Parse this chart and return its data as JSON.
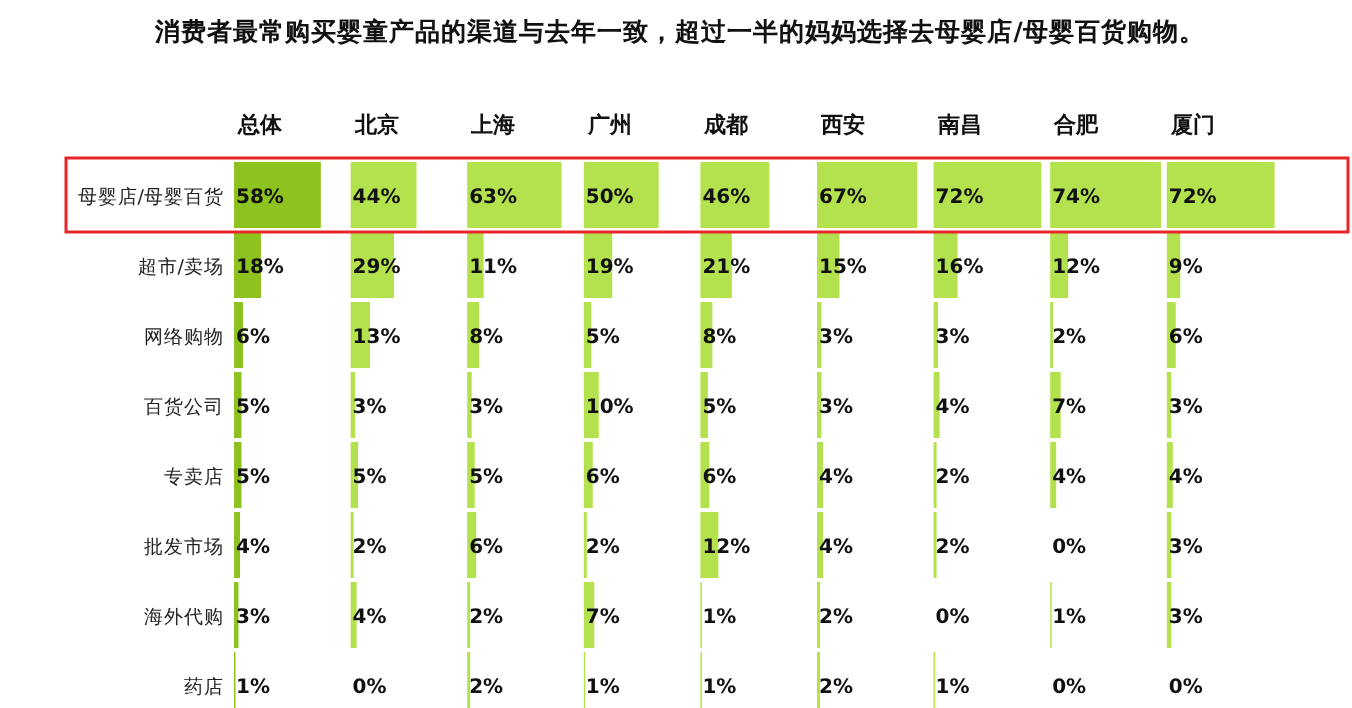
{
  "chart_data": [
    {
      "type": "bar",
      "orientation": "horizontal",
      "title": "总体",
      "annotations": [
        "消费者最常购买婴童产品的渠道与去年一致，超过一半的妈妈选择去母婴店/母婴百货购物。"
      ],
      "categories": [
        "母婴店/母婴百货",
        "超市/卖场",
        "网络购物",
        "百货公司",
        "专卖店",
        "批发市场",
        "海外代购",
        "药店"
      ],
      "values": [
        58,
        18,
        6,
        5,
        5,
        4,
        3,
        1
      ],
      "value_labels": [
        "58%",
        "18%",
        "6%",
        "5%",
        "5%",
        "4%",
        "3%",
        "1%"
      ],
      "color": "#8dc21f",
      "tick_labels": "y"
    },
    {
      "type": "bar",
      "orientation": "horizontal",
      "title": "北京",
      "categories": [
        null,
        null,
        null,
        null,
        null,
        null,
        null,
        null
      ],
      "values": [
        44,
        29,
        13,
        3,
        5,
        2,
        4,
        0
      ],
      "value_labels": [
        "44%",
        "29%",
        "13%",
        "3%",
        "5%",
        "2%",
        "4%",
        "0%"
      ],
      "color": "#b3e24e",
      "tick_labels": false
    },
    {
      "type": "bar",
      "orientation": "horizontal",
      "title": "上海",
      "categories": [
        null,
        null,
        null,
        null,
        null,
        null,
        null,
        null
      ],
      "values": [
        63,
        11,
        8,
        3,
        5,
        6,
        2,
        2
      ],
      "value_labels": [
        "63%",
        "11%",
        "8%",
        "3%",
        "5%",
        "6%",
        "2%",
        "2%"
      ],
      "color": "#b3e24e",
      "tick_labels": false
    },
    {
      "type": "bar",
      "orientation": "horizontal",
      "title": "广州",
      "categories": [
        null,
        null,
        null,
        null,
        null,
        null,
        null,
        null
      ],
      "values": [
        50,
        19,
        5,
        10,
        6,
        2,
        7,
        1
      ],
      "value_labels": [
        "50%",
        "19%",
        "5%",
        "10%",
        "6%",
        "2%",
        "7%",
        "1%"
      ],
      "color": "#b3e24e",
      "tick_labels": false
    },
    {
      "type": "bar",
      "orientation": "horizontal",
      "title": "成都",
      "categories": [
        null,
        null,
        null,
        null,
        null,
        null,
        null,
        null
      ],
      "values": [
        46,
        21,
        8,
        5,
        6,
        12,
        1,
        1
      ],
      "value_labels": [
        "46%",
        "21%",
        "8%",
        "5%",
        "6%",
        "12%",
        "1%",
        "1%"
      ],
      "color": "#b3e24e",
      "tick_labels": false
    },
    {
      "type": "bar",
      "orientation": "horizontal",
      "title": "西安",
      "categories": [
        null,
        null,
        null,
        null,
        null,
        null,
        null,
        null
      ],
      "values": [
        67,
        15,
        3,
        3,
        4,
        4,
        2,
        2
      ],
      "value_labels": [
        "67%",
        "15%",
        "3%",
        "3%",
        "4%",
        "4%",
        "2%",
        "2%"
      ],
      "color": "#b3e24e",
      "tick_labels": false
    },
    {
      "type": "bar",
      "orientation": "horizontal",
      "title": "南昌",
      "categories": [
        null,
        null,
        null,
        null,
        null,
        null,
        null,
        null
      ],
      "values": [
        72,
        16,
        3,
        4,
        2,
        2,
        0,
        1
      ],
      "value_labels": [
        "72%",
        "16%",
        "3%",
        "4%",
        "2%",
        "2%",
        "0%",
        "1%"
      ],
      "color": "#b3e24e",
      "tick_labels": false
    },
    {
      "type": "bar",
      "orientation": "horizontal",
      "title": "合肥",
      "categories": [
        null,
        null,
        null,
        null,
        null,
        null,
        null,
        null
      ],
      "values": [
        74,
        12,
        2,
        7,
        4,
        0,
        1,
        0
      ],
      "value_labels": [
        "74%",
        "12%",
        "2%",
        "7%",
        "4%",
        "0%",
        "1%",
        "0%"
      ],
      "color": "#b3e24e",
      "tick_labels": false
    },
    {
      "type": "bar",
      "orientation": "horizontal",
      "title": "厦门",
      "categories": [
        null,
        null,
        null,
        null,
        null,
        null,
        null,
        null
      ],
      "values": [
        72,
        9,
        6,
        3,
        4,
        3,
        3,
        0
      ],
      "value_labels": [
        "72%",
        "9%",
        "6%",
        "3%",
        "4%",
        "3%",
        "3%",
        "0%"
      ],
      "color": "#b3e24e",
      "tick_labels": false
    }
  ]
}
